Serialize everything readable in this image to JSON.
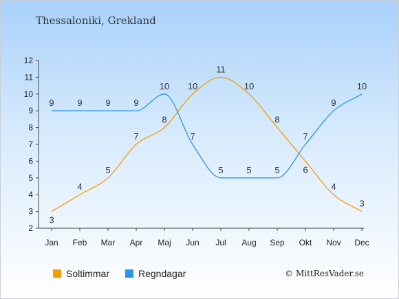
{
  "chart_data": {
    "type": "line",
    "title": "Thessaloniki, Grekland",
    "categories": [
      "Jan",
      "Feb",
      "Mar",
      "Apr",
      "Maj",
      "Jun",
      "Jul",
      "Aug",
      "Sep",
      "Okt",
      "Nov",
      "Dec"
    ],
    "ylim": [
      2,
      12
    ],
    "yticks": [
      "2",
      "3",
      "4",
      "5",
      "6",
      "7",
      "8",
      "9",
      "10",
      "11",
      "12"
    ],
    "grid": false,
    "legend_position": "bottom-left",
    "series": [
      {
        "name": "Soltimmar",
        "color": "#f59a00",
        "values": [
          3,
          4,
          5,
          7,
          8,
          10,
          11,
          10,
          8,
          6,
          4,
          3
        ]
      },
      {
        "name": "Regndagar",
        "color": "#2f93e8",
        "values": [
          9,
          9,
          9,
          9,
          10,
          7,
          5,
          5,
          5,
          7,
          9,
          10
        ]
      }
    ]
  },
  "credit": "© MittResVader.se"
}
